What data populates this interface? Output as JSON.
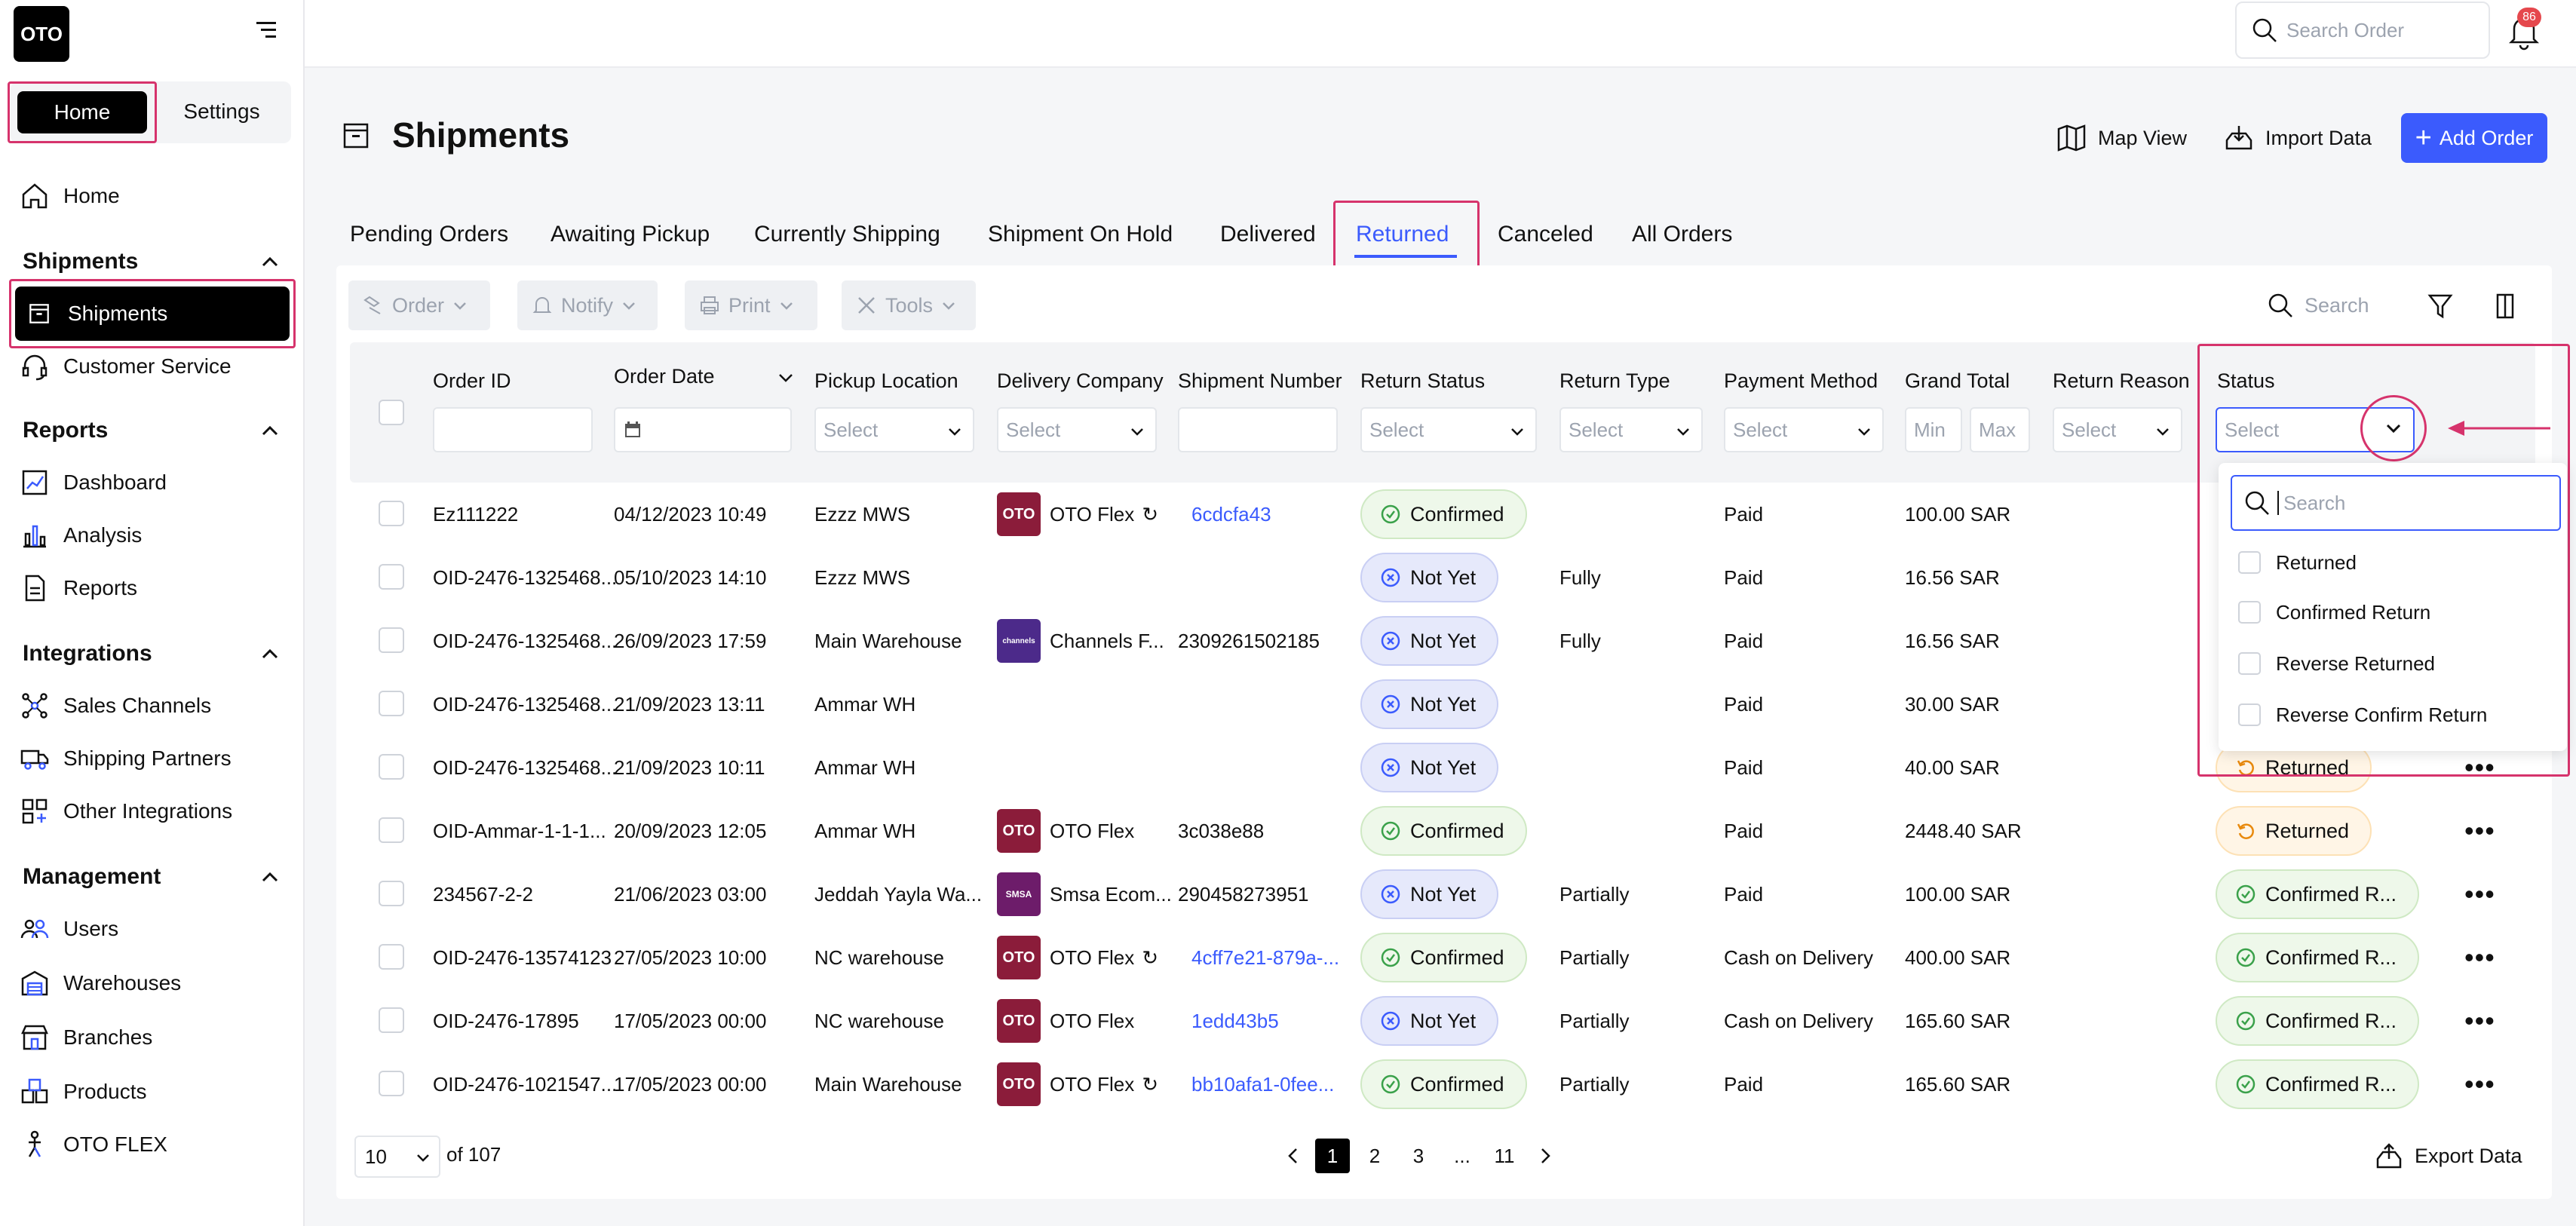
{
  "logo": "OTO",
  "sidebar": {
    "tab_home": "Home",
    "tab_settings": "Settings",
    "home": "Home",
    "sections": {
      "shipments": "Shipments",
      "reports": "Reports",
      "integrations": "Integrations",
      "management": "Management"
    },
    "shipments_items": [
      "Shipments",
      "Customer Service"
    ],
    "reports_items": [
      "Dashboard",
      "Analysis",
      "Reports"
    ],
    "integrations_items": [
      "Sales Channels",
      "Shipping Partners",
      "Other Integrations"
    ],
    "management_items": [
      "Users",
      "Warehouses",
      "Branches",
      "Products",
      "OTO FLEX"
    ]
  },
  "topbar": {
    "search_placeholder": "Search Order",
    "notification_count": "86"
  },
  "page": {
    "title": "Shipments",
    "map_view": "Map View",
    "import_data": "Import Data",
    "add_order": "Add Order"
  },
  "tabs": [
    "Pending Orders",
    "Awaiting Pickup",
    "Currently Shipping",
    "Shipment On Hold",
    "Delivered",
    "Returned",
    "Canceled",
    "All Orders"
  ],
  "toolbar": {
    "order": "Order",
    "notify": "Notify",
    "print": "Print",
    "tools": "Tools",
    "search": "Search"
  },
  "columns": [
    "Order ID",
    "Order Date",
    "Pickup Location",
    "Delivery Company",
    "Shipment Number",
    "Return Status",
    "Return Type",
    "Payment Method",
    "Grand Total",
    "Return Reason",
    "Status"
  ],
  "filters": {
    "select": "Select",
    "min": "Min",
    "max": "Max"
  },
  "rows": [
    {
      "order_id": "Ez111222",
      "date": "04/12/2023 10:49",
      "pickup": "Ezzz MWS",
      "company": "OTO Flex",
      "logo": "OTO",
      "shipment": "6cdcfa43",
      "return_status": "Confirmed",
      "return_type": "",
      "payment": "Paid",
      "total": "100.00 SAR",
      "status": ""
    },
    {
      "order_id": "OID-2476-1325468...",
      "date": "05/10/2023 14:10",
      "pickup": "Ezzz MWS",
      "company": "",
      "logo": "",
      "shipment": "",
      "return_status": "Not Yet",
      "return_type": "Fully",
      "payment": "Paid",
      "total": "16.56 SAR",
      "status": ""
    },
    {
      "order_id": "OID-2476-1325468...",
      "date": "26/09/2023 17:59",
      "pickup": "Main Warehouse",
      "company": "Channels F...",
      "logo": "channels",
      "shipment": "2309261502185",
      "return_status": "Not Yet",
      "return_type": "Fully",
      "payment": "Paid",
      "total": "16.56 SAR",
      "status": ""
    },
    {
      "order_id": "OID-2476-1325468...",
      "date": "21/09/2023 13:11",
      "pickup": "Ammar WH",
      "company": "",
      "logo": "",
      "shipment": "",
      "return_status": "Not Yet",
      "return_type": "",
      "payment": "Paid",
      "total": "30.00 SAR",
      "status": ""
    },
    {
      "order_id": "OID-2476-1325468...",
      "date": "21/09/2023 10:11",
      "pickup": "Ammar WH",
      "company": "",
      "logo": "",
      "shipment": "",
      "return_status": "Not Yet",
      "return_type": "",
      "payment": "Paid",
      "total": "40.00 SAR",
      "status": "Returned"
    },
    {
      "order_id": "OID-Ammar-1-1-1...",
      "date": "20/09/2023 12:05",
      "pickup": "Ammar WH",
      "company": "OTO Flex",
      "logo": "OTO",
      "shipment": "3c038e88",
      "return_status": "Confirmed",
      "return_type": "",
      "payment": "Paid",
      "total": "2448.40 SAR",
      "status": "Returned"
    },
    {
      "order_id": "234567-2-2",
      "date": "21/06/2023 03:00",
      "pickup": "Jeddah Yayla Wa...",
      "company": "Smsa Ecom...",
      "logo": "SMSA",
      "shipment": "290458273951",
      "return_status": "Not Yet",
      "return_type": "Partially",
      "payment": "Paid",
      "total": "100.00 SAR",
      "status": "Confirmed R..."
    },
    {
      "order_id": "OID-2476-13574123",
      "date": "27/05/2023 10:00",
      "pickup": "NC warehouse",
      "company": "OTO Flex",
      "logo": "OTO",
      "shipment": "4cff7e21-879a-...",
      "return_status": "Confirmed",
      "return_type": "Partially",
      "payment": "Cash on Delivery",
      "total": "400.00 SAR",
      "status": "Confirmed R..."
    },
    {
      "order_id": "OID-2476-17895",
      "date": "17/05/2023 00:00",
      "pickup": "NC warehouse",
      "company": "OTO Flex",
      "logo": "OTO",
      "shipment": "1edd43b5",
      "return_status": "Not Yet",
      "return_type": "Partially",
      "payment": "Cash on Delivery",
      "total": "165.60 SAR",
      "status": "Confirmed R..."
    },
    {
      "order_id": "OID-2476-1021547...",
      "date": "17/05/2023 00:00",
      "pickup": "Main Warehouse",
      "company": "OTO Flex",
      "logo": "OTO",
      "shipment": "bb10afa1-0fee...",
      "return_status": "Confirmed",
      "return_type": "Partially",
      "payment": "Paid",
      "total": "165.60 SAR",
      "status": "Confirmed R..."
    }
  ],
  "status_dropdown": {
    "placeholder": "Select",
    "search_placeholder": "Search",
    "options": [
      "Returned",
      "Confirmed Return",
      "Reverse Returned",
      "Reverse Confirm Return"
    ]
  },
  "pagination": {
    "per_page": "10",
    "of_total": "of 107",
    "pages": [
      "1",
      "2",
      "3",
      "...",
      "11"
    ],
    "export": "Export Data"
  },
  "colors": {
    "accent": "#3b5bfd",
    "highlight": "#d6336c",
    "confirmed_bg": "#eef8ea",
    "notyet_bg": "#e6e9fb",
    "returned_bg": "#fff5e6"
  }
}
